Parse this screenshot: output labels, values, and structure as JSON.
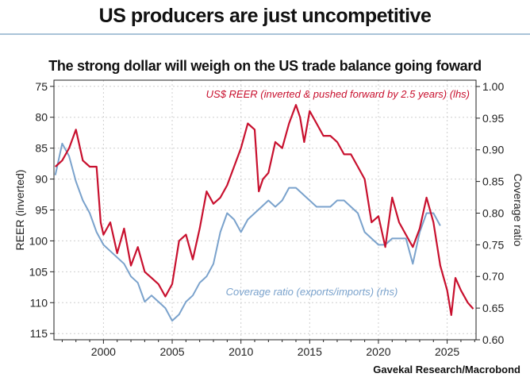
{
  "page": {
    "headline": "US producers are just uncompetitive",
    "source": "Gavekal Research/Macrobond"
  },
  "chart_data": {
    "type": "line",
    "title": "The strong dollar will weigh on the US trade balance going foward",
    "xlabel": "",
    "ylabel_left": "REER (inverted)",
    "ylabel_right": "Coverage ratio",
    "x_range": [
      1996.4,
      2027.1
    ],
    "x_ticks": [
      2000,
      2005,
      2010,
      2015,
      2020,
      2025
    ],
    "y_left_range": [
      116,
      74
    ],
    "y_left_ticks": [
      75,
      80,
      85,
      90,
      95,
      100,
      105,
      110,
      115
    ],
    "y_right_range": [
      0.6,
      1.01
    ],
    "y_right_ticks": [
      "1.00",
      "0.95",
      "0.90",
      "0.85",
      "0.80",
      "0.75",
      "0.70",
      "0.65",
      "0.60"
    ],
    "grid": true,
    "series": [
      {
        "name": "US$ REER (inverted & pushed forward by 2.5 years) (lhs)",
        "axis": "left",
        "color": "#c8102e",
        "x": [
          1996.5,
          1997.0,
          1997.5,
          1998.0,
          1998.5,
          1999.0,
          1999.5,
          1999.8,
          2000.0,
          2000.5,
          2001.0,
          2001.5,
          2002.0,
          2002.5,
          2003.0,
          2003.5,
          2004.0,
          2004.5,
          2005.0,
          2005.5,
          2006.0,
          2006.5,
          2007.0,
          2007.5,
          2008.0,
          2008.5,
          2009.0,
          2009.5,
          2010.0,
          2010.5,
          2011.0,
          2011.3,
          2011.6,
          2012.0,
          2012.5,
          2013.0,
          2013.5,
          2014.0,
          2014.3,
          2014.6,
          2015.0,
          2015.5,
          2016.0,
          2016.5,
          2017.0,
          2017.5,
          2018.0,
          2018.5,
          2019.0,
          2019.5,
          2020.0,
          2020.5,
          2021.0,
          2021.5,
          2022.0,
          2022.5,
          2023.0,
          2023.5,
          2024.0,
          2024.5,
          2025.0,
          2025.3,
          2025.6,
          2026.0,
          2026.5,
          2026.9
        ],
        "y": [
          88,
          87,
          85,
          82,
          87,
          88,
          88,
          97,
          99,
          97,
          102,
          98,
          104,
          101,
          105,
          106,
          107,
          109,
          107,
          100,
          99,
          103,
          98,
          92,
          94,
          93,
          91,
          88,
          85,
          81,
          82,
          92,
          90,
          89,
          84,
          85,
          81,
          78,
          80,
          84,
          79,
          81,
          83,
          83,
          84,
          86,
          86,
          88,
          90,
          97,
          96,
          101,
          93,
          97,
          99,
          101,
          98,
          93,
          97,
          104,
          108,
          112,
          106,
          108,
          110,
          111
        ]
      },
      {
        "name": "Coverage ratio (exports/imports) (rhs)",
        "axis": "right",
        "color": "#7aa2cc",
        "x": [
          1996.5,
          1997.0,
          1997.5,
          1998.0,
          1998.5,
          1999.0,
          1999.5,
          2000.0,
          2000.5,
          2001.0,
          2001.5,
          2002.0,
          2002.5,
          2003.0,
          2003.5,
          2004.0,
          2004.5,
          2005.0,
          2005.5,
          2006.0,
          2006.5,
          2007.0,
          2007.5,
          2008.0,
          2008.5,
          2009.0,
          2009.5,
          2010.0,
          2010.5,
          2011.0,
          2011.5,
          2012.0,
          2012.5,
          2013.0,
          2013.5,
          2014.0,
          2014.5,
          2015.0,
          2015.5,
          2016.0,
          2016.5,
          2017.0,
          2017.5,
          2018.0,
          2018.5,
          2019.0,
          2019.5,
          2020.0,
          2020.5,
          2021.0,
          2021.5,
          2022.0,
          2022.5,
          2023.0,
          2023.5,
          2024.0,
          2024.5
        ],
        "y": [
          0.86,
          0.91,
          0.89,
          0.85,
          0.82,
          0.8,
          0.77,
          0.75,
          0.74,
          0.73,
          0.72,
          0.7,
          0.69,
          0.66,
          0.67,
          0.66,
          0.65,
          0.63,
          0.64,
          0.66,
          0.67,
          0.69,
          0.7,
          0.72,
          0.77,
          0.8,
          0.79,
          0.77,
          0.79,
          0.8,
          0.81,
          0.82,
          0.81,
          0.82,
          0.84,
          0.84,
          0.83,
          0.82,
          0.81,
          0.81,
          0.81,
          0.82,
          0.82,
          0.81,
          0.8,
          0.77,
          0.76,
          0.75,
          0.75,
          0.76,
          0.76,
          0.76,
          0.72,
          0.77,
          0.8,
          0.8,
          0.78
        ]
      }
    ],
    "annotations": [
      {
        "text": "US$ REER (inverted & pushed forward by 2.5 years) (lhs)",
        "series": 0
      },
      {
        "text": "Coverage ratio (exports/imports) (rhs)",
        "series": 1
      }
    ]
  }
}
